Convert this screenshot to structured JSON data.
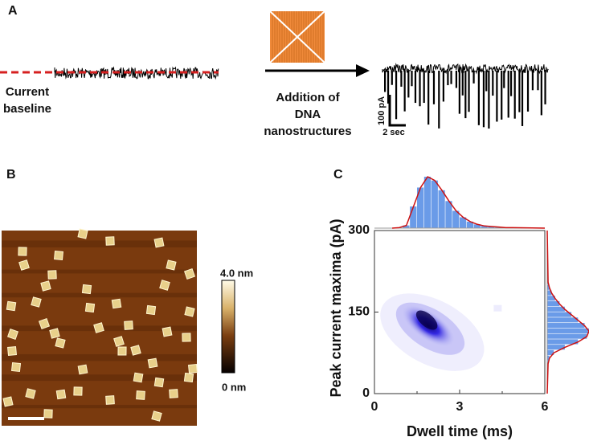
{
  "panels": {
    "a": {
      "label": "A",
      "baseline_label": [
        "Current",
        "baseline"
      ],
      "addition_label": [
        "Addition of",
        "DNA",
        "nanostructures"
      ],
      "scale_y": "100 pA",
      "scale_x": "2 sec"
    },
    "b": {
      "label": "B",
      "colorbar_max": "4.0 nm",
      "colorbar_min": "0 nm"
    },
    "c": {
      "label": "C"
    }
  },
  "chart_data": {
    "type": "density",
    "xlabel": "Dwell time (ms)",
    "ylabel": "Peak current maxima (pA)",
    "xlim": [
      0,
      6
    ],
    "xticks": [
      0,
      3,
      6
    ],
    "ylim": [
      0,
      300
    ],
    "yticks": [
      0,
      150,
      300
    ],
    "x_hist": {
      "bins": [
        0.5,
        0.75,
        1.0,
        1.25,
        1.5,
        1.75,
        2.0,
        2.25,
        2.5,
        2.75,
        3.0,
        3.25,
        3.5,
        3.75,
        4.0,
        4.25,
        4.5,
        4.75,
        5.0
      ],
      "counts": [
        0,
        1,
        5,
        40,
        75,
        95,
        88,
        70,
        50,
        32,
        20,
        12,
        7,
        4,
        3,
        2,
        1,
        1
      ]
    },
    "y_hist": {
      "bins": [
        50,
        60,
        70,
        80,
        90,
        100,
        110,
        120,
        130,
        140,
        150,
        160,
        170,
        180,
        190,
        200,
        210
      ],
      "counts": [
        2,
        5,
        15,
        40,
        70,
        90,
        95,
        85,
        70,
        55,
        40,
        28,
        18,
        10,
        5,
        2
      ]
    },
    "density_color": "#1a10e0",
    "hist_color": "#6a9be8",
    "fit_color": "#cc1111"
  }
}
